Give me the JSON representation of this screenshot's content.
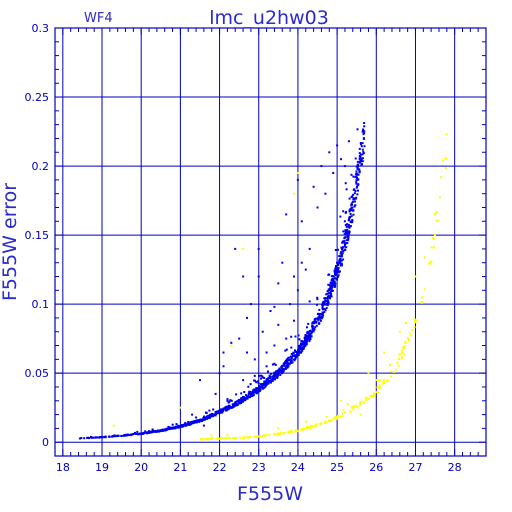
{
  "chart_data": {
    "type": "scatter",
    "title": "lmc_u2hw03",
    "panel_label": "WF4",
    "xlabel": "F555W",
    "ylabel": "F555W error",
    "xlim": [
      17.8,
      28.8
    ],
    "ylim": [
      -0.01,
      0.3
    ],
    "x_ticks": [
      18,
      19,
      20,
      21,
      22,
      23,
      24,
      25,
      26,
      27,
      28
    ],
    "y_ticks": [
      0,
      0.05,
      0.1,
      0.15,
      0.2,
      0.25,
      0.3
    ],
    "y_tick_labels": [
      "0",
      "0.05",
      "0.1",
      "0.15",
      "0.2",
      "0.25",
      "0.3"
    ],
    "grid": true,
    "colors": {
      "axes": "#0000c0",
      "title_text": "#2a2ad0",
      "main_series": "#0000ee",
      "secondary_series": "#ffff00"
    },
    "series": [
      {
        "color": "#0000ee",
        "envelope": {
          "x": [
            18.3,
            19.0,
            19.5,
            20.0,
            20.5,
            21.0,
            21.5,
            22.0,
            22.5,
            23.0,
            23.5,
            24.0,
            24.3,
            24.6,
            24.9,
            25.1,
            25.3,
            25.5,
            25.7
          ],
          "y": [
            0.0025,
            0.0035,
            0.0045,
            0.006,
            0.008,
            0.011,
            0.015,
            0.021,
            0.028,
            0.037,
            0.048,
            0.063,
            0.075,
            0.09,
            0.11,
            0.128,
            0.15,
            0.18,
            0.215
          ]
        },
        "scatter": [
          [
            21.6,
            0.012
          ],
          [
            21.8,
            0.02
          ],
          [
            21.9,
            0.035
          ],
          [
            22.0,
            0.05
          ],
          [
            22.1,
            0.065
          ],
          [
            22.3,
            0.072
          ],
          [
            22.2,
            0.03
          ],
          [
            22.4,
            0.14
          ],
          [
            22.6,
            0.045
          ],
          [
            22.7,
            0.09
          ],
          [
            22.8,
            0.1
          ],
          [
            22.9,
            0.06
          ],
          [
            22.5,
            0.075
          ],
          [
            22.6,
            0.12
          ],
          [
            23.0,
            0.12
          ],
          [
            23.1,
            0.08
          ],
          [
            23.2,
            0.055
          ],
          [
            23.3,
            0.095
          ],
          [
            23.4,
            0.07
          ],
          [
            23.5,
            0.115
          ],
          [
            23.5,
            0.085
          ],
          [
            23.6,
            0.13
          ],
          [
            23.7,
            0.075
          ],
          [
            23.8,
            0.1
          ],
          [
            23.9,
            0.088
          ],
          [
            24.0,
            0.19
          ],
          [
            24.0,
            0.11
          ],
          [
            24.1,
            0.16
          ],
          [
            24.2,
            0.125
          ],
          [
            24.3,
            0.14
          ],
          [
            24.4,
            0.185
          ],
          [
            24.5,
            0.17
          ],
          [
            24.6,
            0.2
          ],
          [
            24.7,
            0.18
          ],
          [
            24.8,
            0.21
          ],
          [
            24.9,
            0.195
          ],
          [
            25.0,
            0.215
          ],
          [
            25.1,
            0.205
          ],
          [
            25.2,
            0.2
          ],
          [
            25.3,
            0.218
          ],
          [
            23.2,
            0.065
          ],
          [
            22.9,
            0.048
          ],
          [
            21.3,
            0.02
          ],
          [
            21.5,
            0.045
          ],
          [
            20.8,
            0.01
          ],
          [
            20.2,
            0.008
          ],
          [
            19.8,
            0.006
          ],
          [
            23.7,
            0.165
          ],
          [
            23.0,
            0.14
          ],
          [
            22.1,
            0.055
          ],
          [
            23.4,
            0.098
          ],
          [
            24.1,
            0.13
          ],
          [
            24.3,
            0.102
          ],
          [
            23.9,
            0.12
          ],
          [
            22.7,
            0.065
          ],
          [
            25.2,
            0.16
          ]
        ]
      },
      {
        "color": "#ffff00",
        "envelope": {
          "x": [
            21.5,
            22.0,
            22.5,
            23.0,
            23.5,
            24.0,
            24.5,
            25.0,
            25.5,
            26.0,
            26.3,
            26.6,
            26.8,
            27.0,
            27.2,
            27.4,
            27.6,
            27.8
          ],
          "y": [
            0.002,
            0.0025,
            0.003,
            0.004,
            0.006,
            0.008,
            0.012,
            0.017,
            0.025,
            0.035,
            0.045,
            0.058,
            0.07,
            0.085,
            0.105,
            0.13,
            0.17,
            0.205
          ]
        },
        "scatter": [
          [
            19.3,
            0.012
          ],
          [
            21.0,
            0.025
          ],
          [
            22.3,
            0.07
          ],
          [
            22.6,
            0.14
          ],
          [
            23.9,
            0.18
          ],
          [
            24.0,
            0.195
          ],
          [
            25.6,
            0.02
          ],
          [
            26.0,
            0.045
          ],
          [
            26.6,
            0.08
          ],
          [
            27.0,
            0.12
          ],
          [
            27.5,
            0.165
          ],
          [
            24.2,
            0.015
          ],
          [
            25.1,
            0.03
          ],
          [
            25.8,
            0.05
          ],
          [
            26.2,
            0.065
          ],
          [
            21.8,
            0.005
          ],
          [
            22.2,
            0.005
          ],
          [
            23.5,
            0.01
          ]
        ]
      }
    ]
  }
}
